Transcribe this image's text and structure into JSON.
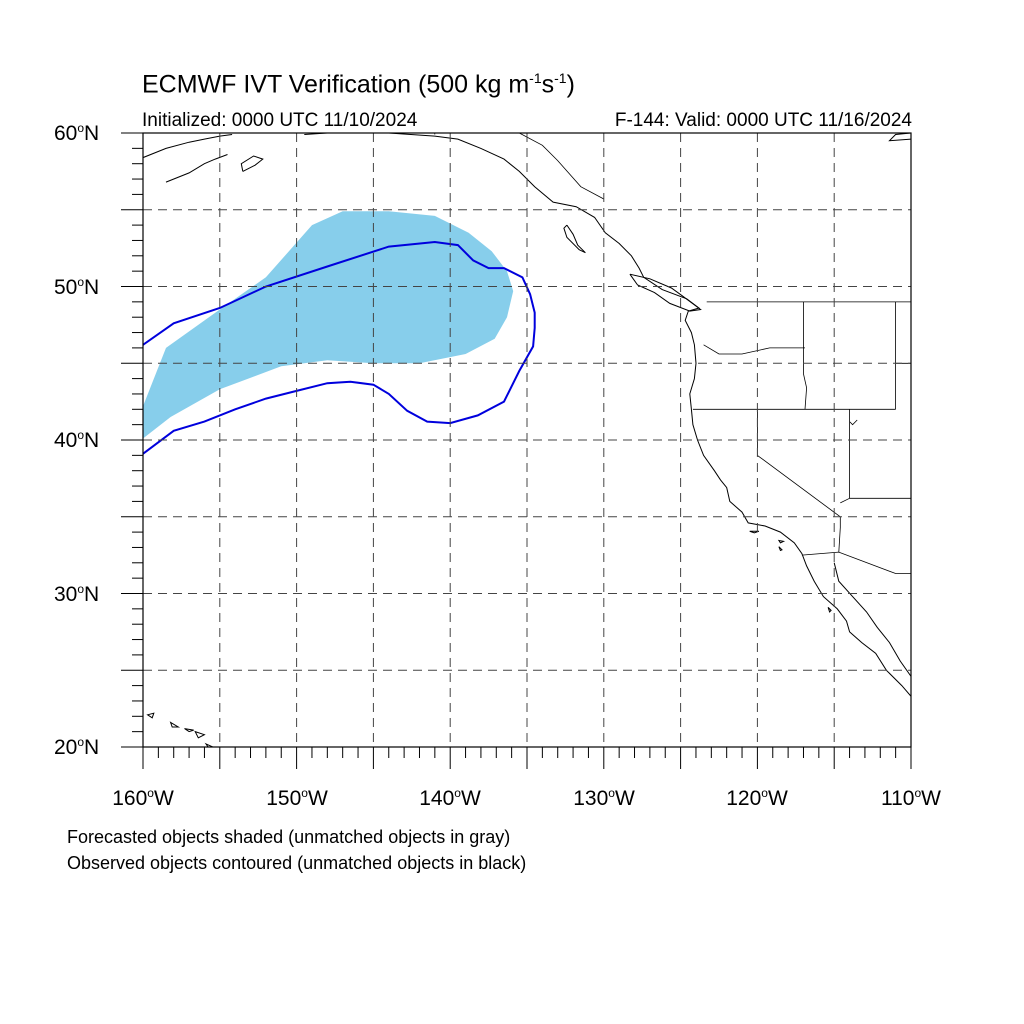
{
  "title": {
    "prefix": "ECMWF IVT Verification (500 kg m",
    "exp1": "-1",
    "middle": "s",
    "exp2": "-1",
    "suffix": ")"
  },
  "initialized_text": "Initialized: 0000 UTC 11/10/2024",
  "valid_text": "F-144: Valid: 0000 UTC 11/16/2024",
  "latitude_labels": [
    {
      "deg": "60",
      "unit": "o",
      "hemi": "N"
    },
    {
      "deg": "50",
      "unit": "o",
      "hemi": "N"
    },
    {
      "deg": "40",
      "unit": "o",
      "hemi": "N"
    },
    {
      "deg": "30",
      "unit": "o",
      "hemi": "N"
    },
    {
      "deg": "20",
      "unit": "o",
      "hemi": "N"
    }
  ],
  "longitude_labels": [
    {
      "deg": "160",
      "unit": "o",
      "hemi": "W"
    },
    {
      "deg": "150",
      "unit": "o",
      "hemi": "W"
    },
    {
      "deg": "140",
      "unit": "o",
      "hemi": "W"
    },
    {
      "deg": "130",
      "unit": "o",
      "hemi": "W"
    },
    {
      "deg": "120",
      "unit": "o",
      "hemi": "W"
    },
    {
      "deg": "110",
      "unit": "o",
      "hemi": "W"
    }
  ],
  "notes": [
    "Forecasted objects shaded (unmatched objects in gray)",
    "Observed objects contoured (unmatched objects in black)"
  ],
  "map_extent": {
    "lon_min": -160,
    "lon_max": -110,
    "lat_min": 20,
    "lat_max": 60
  },
  "colors": {
    "forecast_shade": "#87ceeb",
    "observed_contour": "#0000dd",
    "grid": "#444444",
    "coastline": "#000000"
  },
  "forecast_object_lonlat": [
    [
      -160,
      42.2
    ],
    [
      -158.5,
      46
    ],
    [
      -155,
      48.5
    ],
    [
      -152,
      50.6
    ],
    [
      -149,
      54
    ],
    [
      -147,
      54.9
    ],
    [
      -144,
      54.9
    ],
    [
      -141,
      54.6
    ],
    [
      -138.8,
      53.5
    ],
    [
      -137.3,
      52.3
    ],
    [
      -136.3,
      51
    ],
    [
      -135.9,
      49.7
    ],
    [
      -136.3,
      48
    ],
    [
      -137.1,
      46.6
    ],
    [
      -139,
      45.6
    ],
    [
      -142,
      45
    ],
    [
      -145,
      45
    ],
    [
      -148,
      45.2
    ],
    [
      -151,
      44.8
    ],
    [
      -155,
      43.3
    ],
    [
      -158.2,
      41.5
    ],
    [
      -160,
      40.1
    ]
  ],
  "observed_object_lonlat": [
    [
      -160,
      46.2
    ],
    [
      -158,
      47.6
    ],
    [
      -155,
      48.6
    ],
    [
      -152,
      50
    ],
    [
      -148,
      51.3
    ],
    [
      -144,
      52.6
    ],
    [
      -141,
      52.9
    ],
    [
      -139.5,
      52.7
    ],
    [
      -138.5,
      51.7
    ],
    [
      -137.5,
      51.2
    ],
    [
      -136.5,
      51.2
    ],
    [
      -135.3,
      50.6
    ],
    [
      -134.8,
      49.5
    ],
    [
      -134.5,
      48.3
    ],
    [
      -134.5,
      47.3
    ],
    [
      -134.6,
      46.1
    ],
    [
      -135.5,
      44.5
    ],
    [
      -136.5,
      42.5
    ],
    [
      -138.2,
      41.6
    ],
    [
      -140,
      41.1
    ],
    [
      -141.5,
      41.2
    ],
    [
      -142.8,
      41.9
    ],
    [
      -144,
      43
    ],
    [
      -145,
      43.6
    ],
    [
      -146.5,
      43.8
    ],
    [
      -148,
      43.7
    ],
    [
      -150,
      43.2
    ],
    [
      -152,
      42.7
    ],
    [
      -154,
      42
    ],
    [
      -156,
      41.2
    ],
    [
      -158,
      40.6
    ],
    [
      -160,
      39.1
    ]
  ],
  "coastline_lonlat": [
    [
      [
        -160,
        58.4
      ],
      [
        -158.5,
        59
      ],
      [
        -157,
        59.4
      ],
      [
        -156,
        59.6
      ],
      [
        -155,
        59.8
      ],
      [
        -154.2,
        59.9
      ]
    ],
    [
      [
        -158.5,
        56.8
      ],
      [
        -157,
        57.4
      ],
      [
        -156,
        58
      ],
      [
        -155.3,
        58.3
      ],
      [
        -154.5,
        58.6
      ]
    ],
    [
      [
        -153.5,
        57.5
      ],
      [
        -152.7,
        57.9
      ],
      [
        -152.2,
        58.3
      ],
      [
        -152.8,
        58.5
      ],
      [
        -153.6,
        58
      ],
      [
        -153.5,
        57.5
      ]
    ],
    [
      [
        -149.5,
        59.9
      ],
      [
        -148,
        60
      ],
      [
        -146.5,
        60
      ],
      [
        -145,
        60
      ]
    ],
    [
      [
        -144,
        60
      ],
      [
        -141,
        59.8
      ],
      [
        -139.5,
        59.6
      ],
      [
        -138,
        59
      ],
      [
        -136.5,
        58.3
      ],
      [
        -135.5,
        57.5
      ],
      [
        -134.5,
        56.5
      ],
      [
        -133.3,
        55.5
      ],
      [
        -131.8,
        55.2
      ],
      [
        -130.6,
        54.5
      ],
      [
        -129.9,
        53.5
      ],
      [
        -129,
        52.8
      ],
      [
        -128.2,
        52
      ],
      [
        -127.7,
        51.2
      ],
      [
        -127.4,
        50.6
      ],
      [
        -126.2,
        49.8
      ],
      [
        -124.6,
        49.2
      ],
      [
        -123.8,
        48.6
      ],
      [
        -124.5,
        48.4
      ],
      [
        -124.7,
        47.8
      ],
      [
        -124.3,
        47
      ],
      [
        -124.1,
        46.2
      ],
      [
        -124,
        45
      ],
      [
        -124.1,
        44
      ],
      [
        -124.4,
        43
      ],
      [
        -124.3,
        42
      ],
      [
        -124.2,
        41
      ],
      [
        -123.9,
        40
      ],
      [
        -123.5,
        39
      ],
      [
        -122.8,
        38
      ],
      [
        -122.4,
        37.4
      ],
      [
        -122,
        36.9
      ],
      [
        -121.8,
        36
      ],
      [
        -121,
        35.3
      ],
      [
        -120.6,
        34.6
      ],
      [
        -119.5,
        34.4
      ],
      [
        -118.5,
        34
      ],
      [
        -117.6,
        33.3
      ],
      [
        -117.1,
        32.6
      ],
      [
        -116.8,
        31.8
      ],
      [
        -116.3,
        30.8
      ],
      [
        -115.7,
        29.8
      ],
      [
        -114.8,
        29
      ],
      [
        -114.2,
        28.2
      ],
      [
        -114,
        27.5
      ],
      [
        -113.2,
        26.8
      ],
      [
        -112.3,
        26.1
      ],
      [
        -111.6,
        25
      ],
      [
        -110.6,
        24
      ],
      [
        -110,
        23.3
      ]
    ],
    [
      [
        -132.4,
        54
      ],
      [
        -132,
        53.4
      ],
      [
        -131.7,
        52.7
      ],
      [
        -131.2,
        52.2
      ],
      [
        -131.6,
        52.4
      ],
      [
        -132.4,
        53.2
      ],
      [
        -132.6,
        53.8
      ],
      [
        -132.4,
        54
      ]
    ],
    [
      [
        -128.3,
        50.8
      ],
      [
        -127,
        50.5
      ],
      [
        -125.6,
        49.9
      ],
      [
        -124.9,
        49.4
      ],
      [
        -123.7,
        48.5
      ],
      [
        -124.4,
        48.4
      ],
      [
        -125.7,
        48.9
      ],
      [
        -126.7,
        49.6
      ],
      [
        -127.8,
        50.1
      ],
      [
        -128.3,
        50.8
      ]
    ],
    [
      [
        -115,
        32
      ],
      [
        -114.7,
        30.8
      ],
      [
        -113.8,
        29.8
      ],
      [
        -112.9,
        28.8
      ],
      [
        -112.2,
        27.8
      ],
      [
        -111.4,
        26.8
      ],
      [
        -110.7,
        25.6
      ],
      [
        -110,
        24.6
      ]
    ],
    [
      [
        -110,
        60
      ],
      [
        -111,
        59.9
      ],
      [
        -111.4,
        59.5
      ],
      [
        -110,
        59.6
      ]
    ]
  ],
  "islands_lonlat": [
    [
      [
        -159.7,
        22.1
      ],
      [
        -159.3,
        22.2
      ],
      [
        -159.4,
        21.9
      ],
      [
        -159.7,
        22.1
      ]
    ],
    [
      [
        -158.2,
        21.6
      ],
      [
        -157.7,
        21.3
      ],
      [
        -158.1,
        21.3
      ],
      [
        -158.2,
        21.6
      ]
    ],
    [
      [
        -157.3,
        21.2
      ],
      [
        -156.7,
        21.1
      ],
      [
        -157,
        21
      ],
      [
        -157.3,
        21.2
      ]
    ],
    [
      [
        -156.6,
        21
      ],
      [
        -156,
        20.8
      ],
      [
        -156.4,
        20.6
      ],
      [
        -156.6,
        21
      ]
    ],
    [
      [
        -155.9,
        20.2
      ],
      [
        -155,
        19.8
      ],
      [
        -155.5,
        19.6
      ],
      [
        -155.9,
        20.2
      ]
    ],
    [
      [
        -120.5,
        34.05
      ],
      [
        -119.9,
        34.05
      ],
      [
        -120.2,
        33.95
      ],
      [
        -120.5,
        34.05
      ]
    ],
    [
      [
        -118.6,
        33.45
      ],
      [
        -118.3,
        33.4
      ],
      [
        -118.5,
        33.3
      ],
      [
        -118.6,
        33.45
      ]
    ],
    [
      [
        -118.6,
        33.05
      ],
      [
        -118.4,
        32.85
      ],
      [
        -118.5,
        32.8
      ],
      [
        -118.6,
        33.05
      ]
    ],
    [
      [
        -115.4,
        29.1
      ],
      [
        -115.2,
        28.9
      ],
      [
        -115.3,
        28.8
      ],
      [
        -115.4,
        29.1
      ]
    ]
  ],
  "borders_lonlat": [
    [
      [
        -141,
        60
      ],
      [
        -141,
        59.9
      ]
    ],
    [
      [
        -135.5,
        60
      ],
      [
        -134,
        59.2
      ],
      [
        -133,
        58.2
      ],
      [
        -131.5,
        56.5
      ],
      [
        -130,
        55.7
      ]
    ],
    [
      [
        -123.3,
        49
      ],
      [
        -110,
        49
      ]
    ],
    [
      [
        -117,
        49
      ],
      [
        -117,
        44.3
      ],
      [
        -116.8,
        43.4
      ],
      [
        -116.9,
        42
      ]
    ],
    [
      [
        -124.2,
        42
      ],
      [
        -111,
        42
      ]
    ],
    [
      [
        -123.5,
        46.2
      ],
      [
        -122.5,
        45.6
      ],
      [
        -121,
        45.6
      ],
      [
        -119.2,
        46
      ],
      [
        -116.9,
        46
      ]
    ],
    [
      [
        -120,
        42
      ],
      [
        -120,
        39
      ],
      [
        -114.6,
        35
      ],
      [
        -114.6,
        34.3
      ],
      [
        -114.7,
        32.7
      ]
    ],
    [
      [
        -114,
        42
      ],
      [
        -114,
        36.2
      ],
      [
        -114.6,
        35.9
      ]
    ],
    [
      [
        -117.1,
        32.5
      ],
      [
        -114.7,
        32.7
      ],
      [
        -111,
        31.3
      ],
      [
        -110,
        31.3
      ]
    ],
    [
      [
        -111,
        49
      ],
      [
        -111,
        45
      ],
      [
        -110,
        45
      ]
    ],
    [
      [
        -111,
        45
      ],
      [
        -111,
        42
      ]
    ],
    [
      [
        -114,
        36.2
      ],
      [
        -110,
        36.2
      ]
    ],
    [
      [
        -114,
        41.2
      ],
      [
        -113.8,
        41
      ],
      [
        -113.5,
        41.3
      ]
    ]
  ]
}
